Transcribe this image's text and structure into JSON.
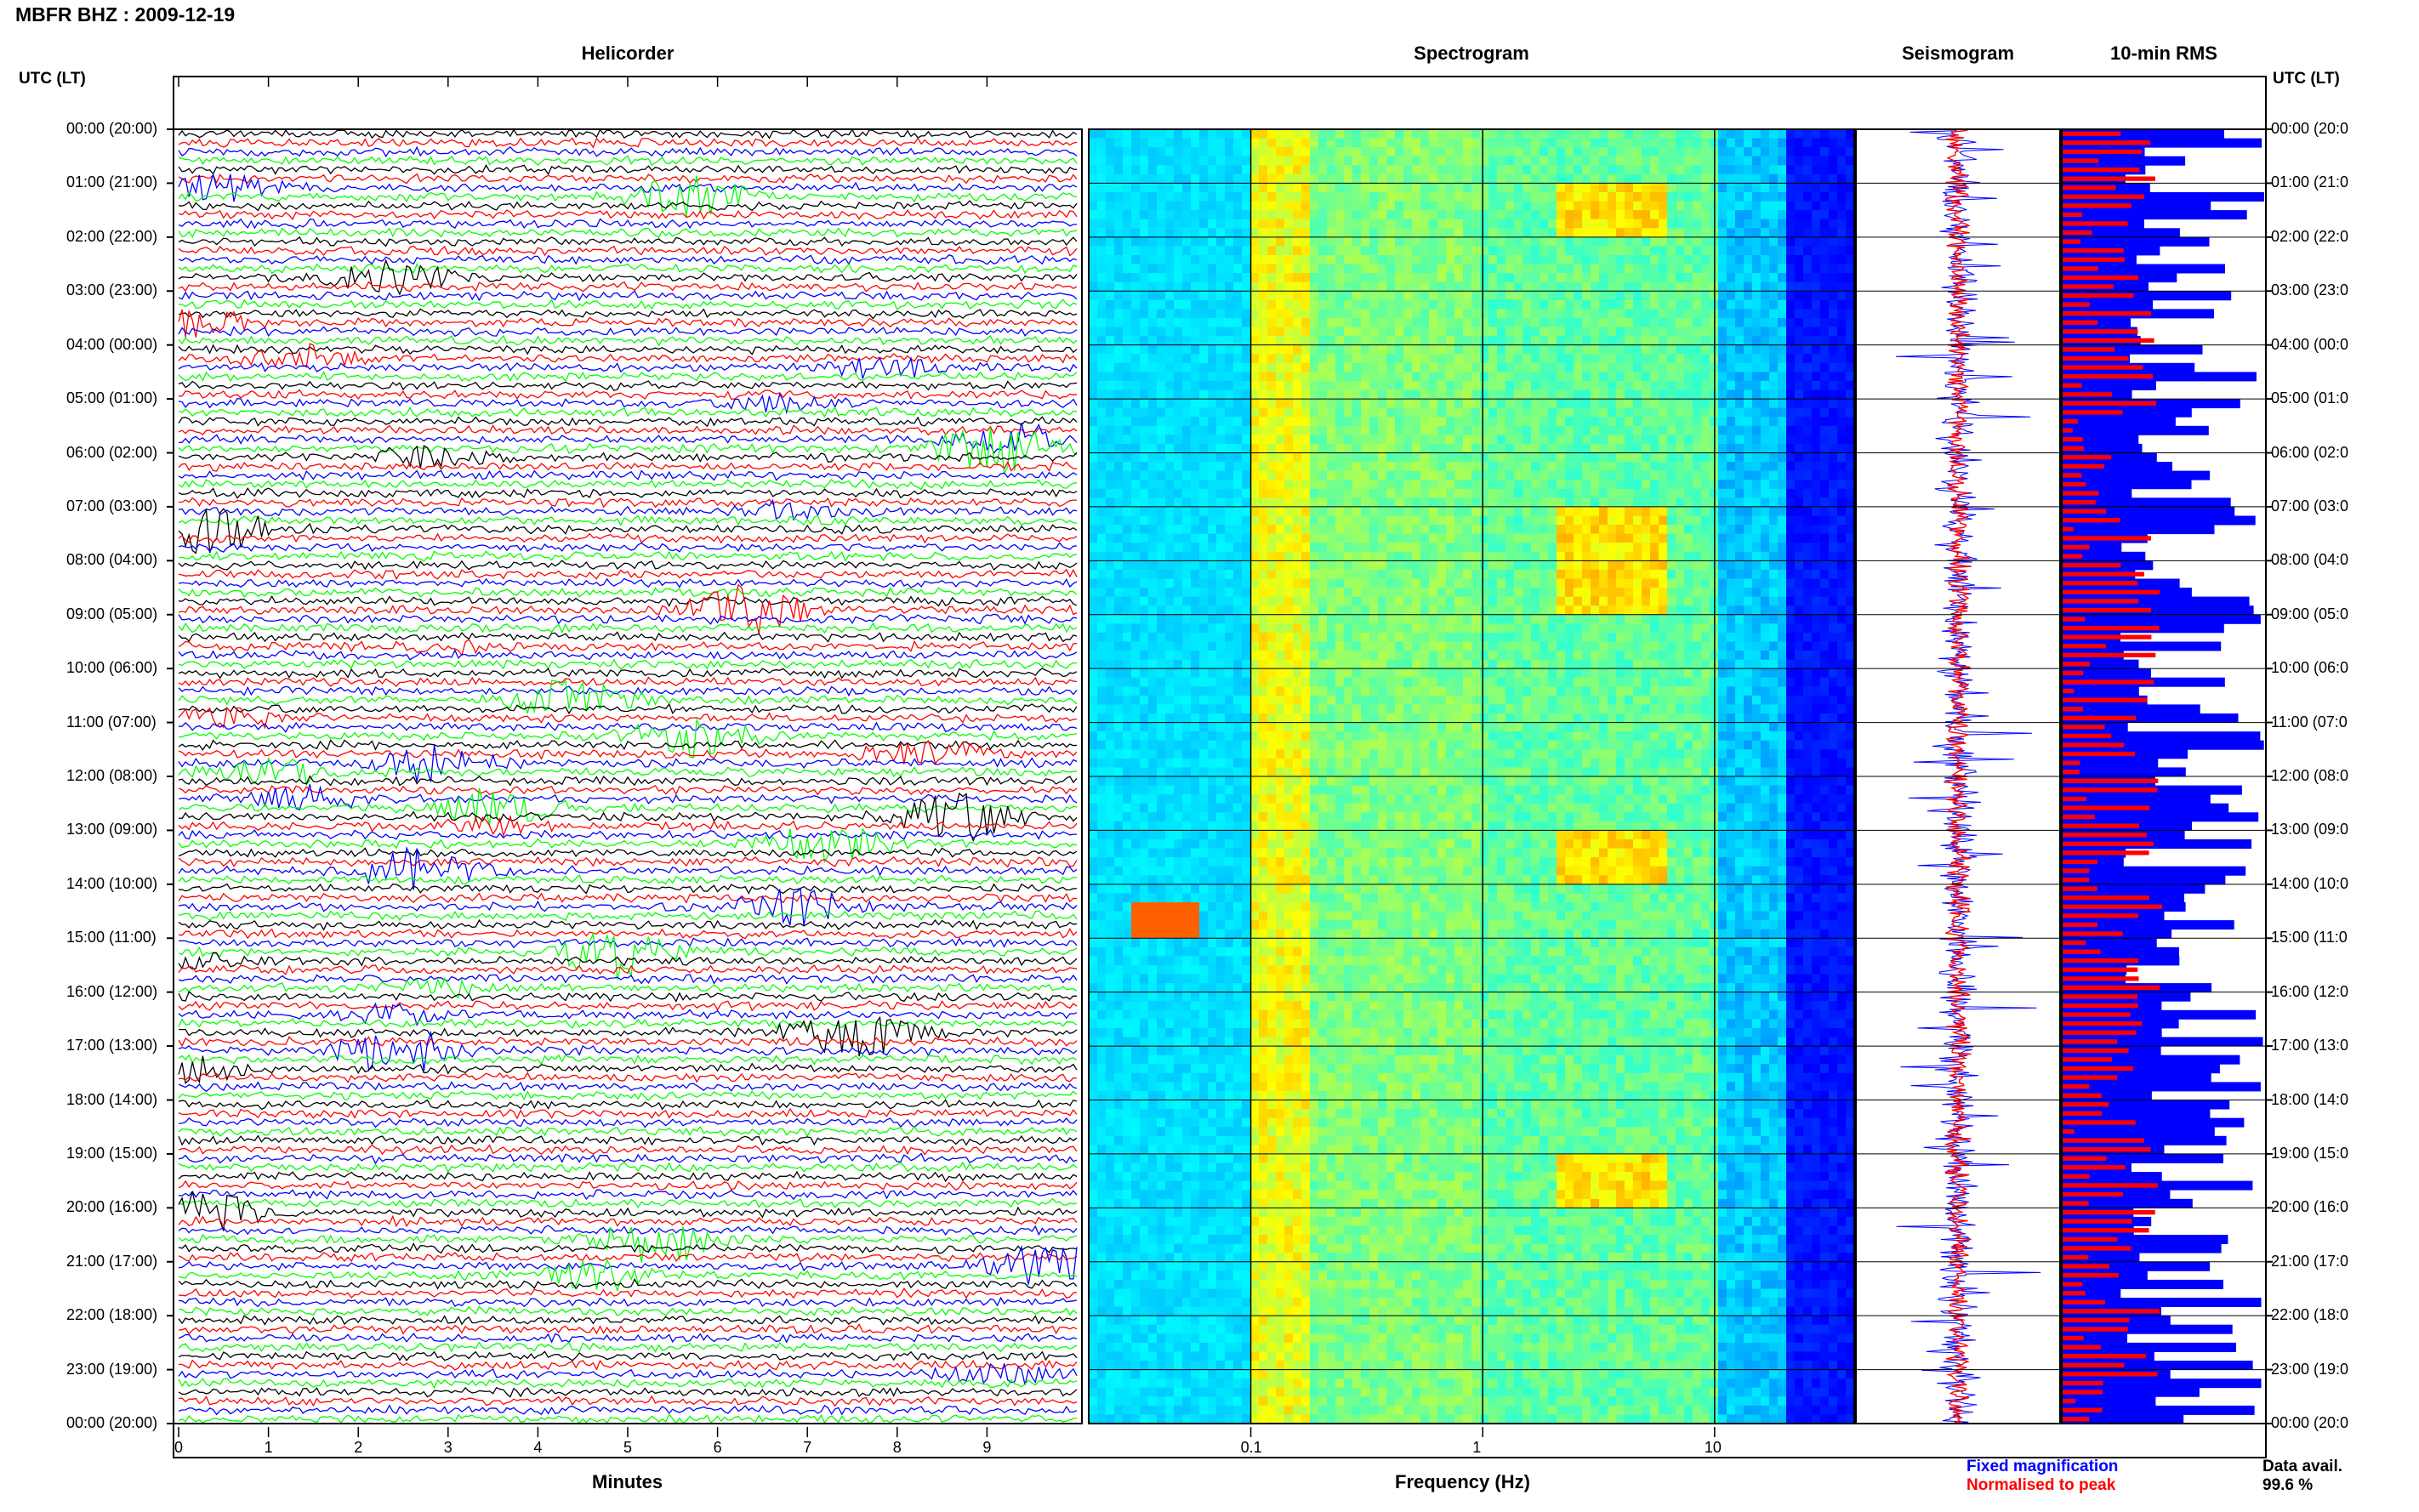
{
  "header": {
    "title": "MBFR BHZ : 2009-12-19"
  },
  "panels": {
    "helicorder": "Helicorder",
    "spectrogram": "Spectrogram",
    "seismogram": "Seismogram",
    "rms": "10-min RMS"
  },
  "axis_header_left": "UTC (LT)",
  "axis_header_right": "UTC (LT)",
  "time_labels": [
    "00:00 (20:00)",
    "01:00 (21:00)",
    "02:00 (22:00)",
    "03:00 (23:00)",
    "04:00 (00:00)",
    "05:00 (01:00)",
    "06:00 (02:00)",
    "07:00 (03:00)",
    "08:00 (04:00)",
    "09:00 (05:00)",
    "10:00 (06:00)",
    "11:00 (07:00)",
    "12:00 (08:00)",
    "13:00 (09:00)",
    "14:00 (10:00)",
    "15:00 (11:00)",
    "16:00 (12:00)",
    "17:00 (13:00)",
    "18:00 (14:00)",
    "19:00 (15:00)",
    "20:00 (16:00)",
    "21:00 (17:00)",
    "22:00 (18:00)",
    "23:00 (19:00)",
    "00:00 (20:00)"
  ],
  "right_time_labels": [
    "00:00 (20:0",
    "01:00 (21:0",
    "02:00 (22:0",
    "03:00 (23:0",
    "04:00 (00:0",
    "05:00 (01:0",
    "06:00 (02:0",
    "07:00 (03:0",
    "08:00 (04:0",
    "09:00 (05:0",
    "10:00 (06:0",
    "11:00 (07:0",
    "12:00 (08:0",
    "13:00 (09:0",
    "14:00 (10:0",
    "15:00 (11:0",
    "16:00 (12:0",
    "17:00 (13:0",
    "18:00 (14:0",
    "19:00 (15:0",
    "20:00 (16:0",
    "21:00 (17:0",
    "22:00 (18:0",
    "23:00 (19:0",
    "00:00 (20:0"
  ],
  "helicorder_xlabel": "Minutes",
  "helicorder_ticks": [
    "0",
    "1",
    "2",
    "3",
    "4",
    "5",
    "6",
    "7",
    "8",
    "9"
  ],
  "spectrogram_xlabel": "Frequency (Hz)",
  "spectrogram_ticks": [
    "0.1",
    "1",
    "10"
  ],
  "legend": {
    "fixed": "Fixed magnification",
    "normalised": "Normalised to peak"
  },
  "data_avail": {
    "label": "Data avail.",
    "value": "99.6 %"
  },
  "colors": {
    "black": "#000000",
    "red": "#ff0000",
    "blue": "#0000ff",
    "green": "#00ff00"
  },
  "chart_data": [
    {
      "type": "line",
      "name": "Helicorder",
      "xlabel": "Minutes",
      "xlim": [
        0,
        10
      ],
      "rows": 144,
      "row_minutes": 10,
      "trace_colors": [
        "#000000",
        "#ff0000",
        "#0000ff",
        "#00ff00"
      ]
    },
    {
      "type": "heatmap",
      "name": "Spectrogram",
      "xlabel": "Frequency (Hz)",
      "xscale": "log",
      "xlim": [
        0.02,
        40
      ],
      "colormap": "jet"
    },
    {
      "type": "line",
      "name": "Seismogram",
      "series": [
        "Fixed magnification",
        "Normalised to peak"
      ]
    },
    {
      "type": "bar",
      "name": "10-min RMS",
      "orientation": "horizontal",
      "series": [
        "Fixed magnification",
        "Normalised to peak"
      ]
    }
  ]
}
